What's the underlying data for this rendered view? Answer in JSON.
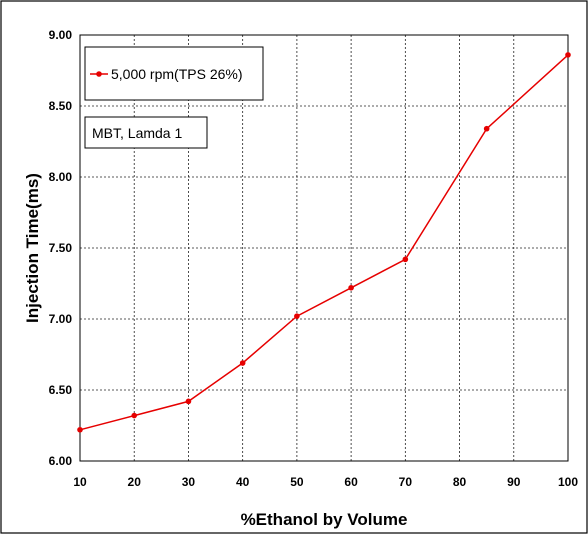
{
  "chart_data": {
    "type": "line",
    "xlabel": "%Ethanol by Volume",
    "ylabel": "Injection Time(ms)",
    "xlim": [
      10,
      100
    ],
    "ylim": [
      6.0,
      9.0
    ],
    "x_ticks": [
      10,
      20,
      30,
      40,
      50,
      60,
      70,
      80,
      90,
      100
    ],
    "y_ticks": [
      "6.00",
      "6.50",
      "7.00",
      "7.50",
      "8.00",
      "8.50",
      "9.00"
    ],
    "grid": true,
    "legend_position": "top-left",
    "series": [
      {
        "name": "5,000 rpm(TPS 26%)",
        "color": "#e60000",
        "marker": "dot",
        "x": [
          10,
          20,
          30,
          40,
          50,
          60,
          70,
          85,
          100
        ],
        "y": [
          6.22,
          6.32,
          6.42,
          6.69,
          7.02,
          7.22,
          7.42,
          8.34,
          8.86
        ]
      }
    ],
    "annotation": "MBT, Lamda 1"
  }
}
